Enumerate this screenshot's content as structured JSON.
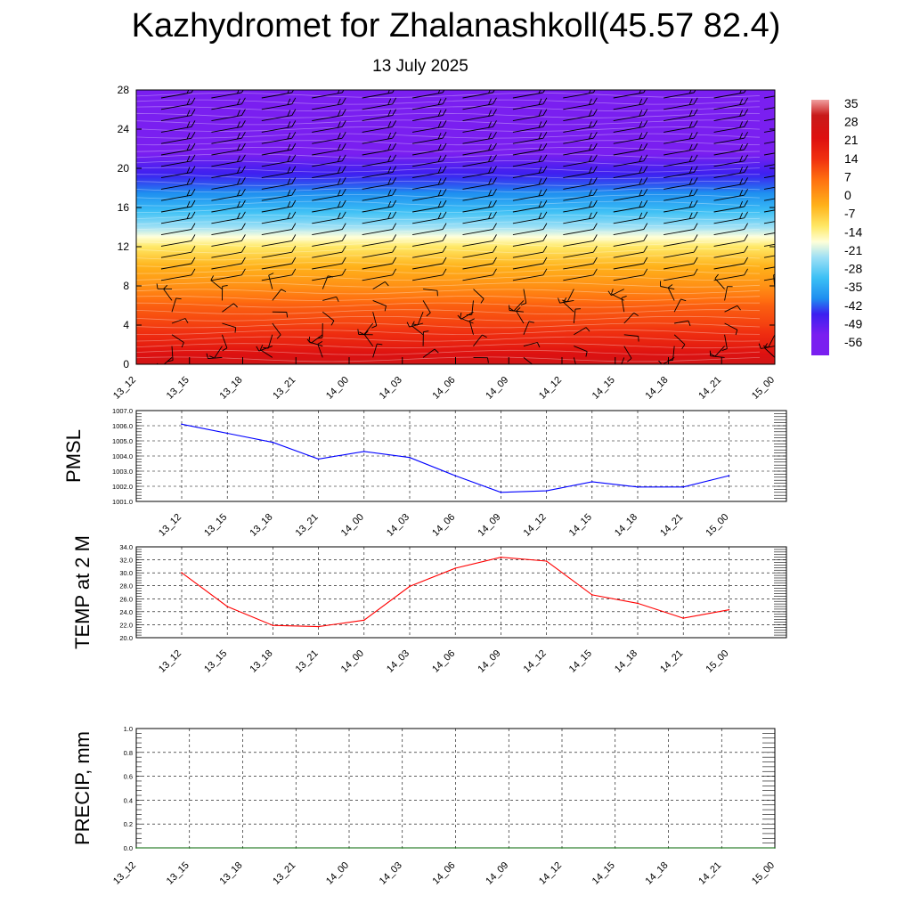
{
  "header": {
    "title": "Kazhydromet for Zhalanashkoll(45.57 82.4)",
    "subtitle": "13 July 2025"
  },
  "time_labels": [
    "13_12",
    "13_15",
    "13_18",
    "13_21",
    "14_00",
    "14_03",
    "14_06",
    "14_09",
    "14_12",
    "14_15",
    "14_18",
    "14_21",
    "15_00"
  ],
  "chart_data": [
    {
      "type": "heatmap",
      "title": "",
      "x": [
        "13_12",
        "13_15",
        "13_18",
        "13_21",
        "14_00",
        "14_03",
        "14_06",
        "14_09",
        "14_12",
        "14_15",
        "14_18",
        "14_21",
        "15_00"
      ],
      "y_ticks": [
        0,
        4,
        8,
        12,
        16,
        20,
        24,
        28
      ],
      "ylim": [
        0,
        28
      ],
      "colorbar": {
        "labels": [
          35,
          28,
          21,
          14,
          7,
          0,
          -7,
          -14,
          -21,
          -28,
          -35,
          -42,
          -49,
          -56
        ],
        "range": [
          -60,
          39
        ],
        "stops": [
          {
            "v": -60,
            "color": "#7a1ff0"
          },
          {
            "v": -52,
            "color": "#7a1ff0"
          },
          {
            "v": -44,
            "color": "#3c20f0"
          },
          {
            "v": -38,
            "color": "#1e8ef0"
          },
          {
            "v": -30,
            "color": "#3cc0f5"
          },
          {
            "v": -22,
            "color": "#9ee0f5"
          },
          {
            "v": -16,
            "color": "#ffffd8"
          },
          {
            "v": -10,
            "color": "#ffe866"
          },
          {
            "v": -2,
            "color": "#ffb21a"
          },
          {
            "v": 8,
            "color": "#ff7010"
          },
          {
            "v": 16,
            "color": "#f03010"
          },
          {
            "v": 24,
            "color": "#de1010"
          },
          {
            "v": 33,
            "color": "#c81a1a"
          },
          {
            "v": 39,
            "color": "#f0a0a0"
          }
        ]
      },
      "profile": [
        {
          "h": 0,
          "t": 29
        },
        {
          "h": 2,
          "t": 20
        },
        {
          "h": 4,
          "t": 14
        },
        {
          "h": 6,
          "t": 10
        },
        {
          "h": 8,
          "t": 3
        },
        {
          "h": 10,
          "t": -2
        },
        {
          "h": 12,
          "t": -10
        },
        {
          "h": 13,
          "t": -16
        },
        {
          "h": 14,
          "t": -22
        },
        {
          "h": 16,
          "t": -32
        },
        {
          "h": 18,
          "t": -40
        },
        {
          "h": 20,
          "t": -46
        },
        {
          "h": 22,
          "t": -54
        },
        {
          "h": 24,
          "t": -57
        },
        {
          "h": 28,
          "t": -58
        }
      ],
      "wind_barbs": true
    },
    {
      "type": "line",
      "ylabel": "PMSL",
      "ylim": [
        1001.0,
        1007.0
      ],
      "y_ticks": [
        "1001.0",
        "1002.0",
        "1003.0",
        "1004.0",
        "1005.0",
        "1006.0",
        "1007.0"
      ],
      "x": [
        "13_12",
        "13_15",
        "13_18",
        "13_21",
        "14_00",
        "14_03",
        "14_06",
        "14_09",
        "14_12",
        "14_15",
        "14_18",
        "14_21",
        "15_00"
      ],
      "series": [
        {
          "color": "#0000ff",
          "values": [
            1006.1,
            1005.5,
            1004.9,
            1003.8,
            1004.3,
            1003.9,
            1002.7,
            1001.6,
            1001.7,
            1002.3,
            1001.95,
            1001.95,
            1002.7
          ]
        }
      ],
      "grid": true
    },
    {
      "type": "line",
      "ylabel": "TEMP at 2 M",
      "ylim": [
        20.0,
        34.0
      ],
      "y_ticks": [
        "20.0",
        "22.0",
        "24.0",
        "26.0",
        "28.0",
        "30.0",
        "32.0",
        "34.0"
      ],
      "x": [
        "13_12",
        "13_15",
        "13_18",
        "13_21",
        "14_00",
        "14_03",
        "14_06",
        "14_09",
        "14_12",
        "14_15",
        "14_18",
        "14_21",
        "15_00"
      ],
      "series": [
        {
          "color": "#ff0000",
          "values": [
            30.0,
            24.8,
            21.9,
            21.7,
            22.7,
            27.9,
            30.7,
            32.4,
            31.8,
            26.6,
            25.3,
            23.0,
            24.3
          ]
        }
      ],
      "grid": true
    },
    {
      "type": "line",
      "ylabel": "PRECIP, mm",
      "ylim": [
        0.0,
        1.0
      ],
      "y_ticks": [
        "0.0",
        "0.2",
        "0.4",
        "0.6",
        "0.8",
        "1.0"
      ],
      "x": [
        "13_12",
        "13_15",
        "13_18",
        "13_21",
        "14_00",
        "14_03",
        "14_06",
        "14_09",
        "14_12",
        "14_15",
        "14_18",
        "14_21",
        "15_00"
      ],
      "series": [
        {
          "color": "#006400",
          "values": [
            0,
            0,
            0,
            0,
            0,
            0,
            0,
            0,
            0,
            0,
            0,
            0,
            0
          ]
        }
      ],
      "grid": true
    }
  ]
}
